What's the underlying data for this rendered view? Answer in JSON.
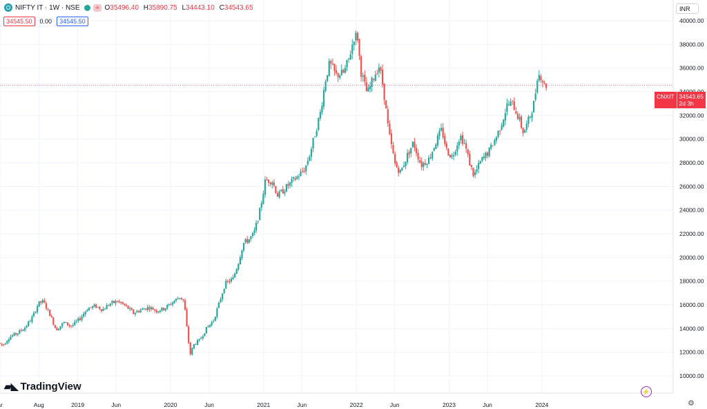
{
  "header": {
    "symbol_line": "NIFTY IT · 1W · NSE",
    "status_badge": "≈",
    "ohlc": {
      "open_label": "O",
      "open": "35496.40",
      "high_label": "H",
      "high": "35890.75",
      "low_label": "L",
      "low": "34443.10",
      "close_label": "C",
      "close": "34543.65"
    },
    "bid": "34545.50",
    "spread": "0.00",
    "ask": "34545.50",
    "currency": "INR"
  },
  "last_price_label": {
    "ticker": "CNXIT",
    "price": "34543.65",
    "countdown": "2d 3h"
  },
  "brand": "TradingView",
  "icons": {
    "symbol": "symbol-logo-icon",
    "market_open": "green-dot-icon",
    "settings": "gear-icon",
    "bolt": "lightning-icon"
  },
  "colors": {
    "up": "#26a69a",
    "down": "#ef5350",
    "grid": "#f0f3fa",
    "last_price": "#f23645"
  },
  "chart_data": {
    "type": "candlestick",
    "timeframe": "1W",
    "x_range": [
      "2018-03-01",
      "2024-01-20"
    ],
    "ylim": [
      9000,
      41000
    ],
    "y_ticks": [
      10000,
      12000,
      14000,
      16000,
      18000,
      20000,
      22000,
      24000,
      26000,
      28000,
      30000,
      32000,
      34000,
      36000,
      38000,
      40000
    ],
    "y_tick_labels": [
      "10000.00",
      "12000.00",
      "14000.00",
      "16000.00",
      "18000.00",
      "20000.00",
      "22000.00",
      "24000.00",
      "26000.00",
      "28000.00",
      "30000.00",
      "32000.00",
      "34000.00",
      "36000.00",
      "38000.00",
      "40000.00"
    ],
    "x_ticks": [
      {
        "label": "ar",
        "date": "2018-03-01"
      },
      {
        "label": "Aug",
        "date": "2018-08-01"
      },
      {
        "label": "2019",
        "date": "2019-01-01"
      },
      {
        "label": "Jun",
        "date": "2019-06-01"
      },
      {
        "label": "2020",
        "date": "2020-01-01"
      },
      {
        "label": "Jun",
        "date": "2020-06-01"
      },
      {
        "label": "2021",
        "date": "2021-01-01"
      },
      {
        "label": "Jun",
        "date": "2021-06-01"
      },
      {
        "label": "2022",
        "date": "2022-01-01"
      },
      {
        "label": "Jun",
        "date": "2022-06-01"
      },
      {
        "label": "2023",
        "date": "2023-01-01"
      },
      {
        "label": "Jun",
        "date": "2023-06-01"
      },
      {
        "label": "2024",
        "date": "2024-01-01"
      }
    ],
    "grid": true,
    "last_price": 34543.65,
    "anchors": [
      [
        "2018-03-01",
        12800
      ],
      [
        "2018-03-20",
        12600
      ],
      [
        "2018-04-15",
        13300
      ],
      [
        "2018-05-15",
        13600
      ],
      [
        "2018-06-15",
        14100
      ],
      [
        "2018-07-15",
        15000
      ],
      [
        "2018-08-05",
        16100
      ],
      [
        "2018-08-25",
        16300
      ],
      [
        "2018-09-20",
        15200
      ],
      [
        "2018-10-15",
        13900
      ],
      [
        "2018-11-15",
        14500
      ],
      [
        "2018-12-15",
        14200
      ],
      [
        "2019-01-15",
        14800
      ],
      [
        "2019-02-15",
        15700
      ],
      [
        "2019-03-20",
        15900
      ],
      [
        "2019-04-15",
        15600
      ],
      [
        "2019-05-15",
        16100
      ],
      [
        "2019-06-15",
        16300
      ],
      [
        "2019-07-15",
        15900
      ],
      [
        "2019-08-15",
        15300
      ],
      [
        "2019-09-15",
        15600
      ],
      [
        "2019-10-15",
        15800
      ],
      [
        "2019-11-15",
        15500
      ],
      [
        "2019-12-15",
        15700
      ],
      [
        "2020-01-15",
        16200
      ],
      [
        "2020-02-15",
        16700
      ],
      [
        "2020-03-01",
        16300
      ],
      [
        "2020-03-15",
        13500
      ],
      [
        "2020-03-25",
        11800
      ],
      [
        "2020-04-10",
        12700
      ],
      [
        "2020-05-01",
        13000
      ],
      [
        "2020-05-25",
        13900
      ],
      [
        "2020-06-25",
        14700
      ],
      [
        "2020-07-15",
        16000
      ],
      [
        "2020-08-10",
        17800
      ],
      [
        "2020-09-10",
        18200
      ],
      [
        "2020-10-01",
        19600
      ],
      [
        "2020-10-20",
        21200
      ],
      [
        "2020-11-10",
        21500
      ],
      [
        "2020-12-01",
        22000
      ],
      [
        "2020-12-25",
        24000
      ],
      [
        "2021-01-15",
        26500
      ],
      [
        "2021-02-10",
        26500
      ],
      [
        "2021-03-05",
        25200
      ],
      [
        "2021-04-01",
        25800
      ],
      [
        "2021-04-25",
        26300
      ],
      [
        "2021-05-20",
        26800
      ],
      [
        "2021-06-20",
        27500
      ],
      [
        "2021-07-10",
        28800
      ],
      [
        "2021-07-30",
        30500
      ],
      [
        "2021-08-20",
        32300
      ],
      [
        "2021-09-10",
        35200
      ],
      [
        "2021-09-25",
        36400
      ],
      [
        "2021-10-20",
        35400
      ],
      [
        "2021-11-20",
        35600
      ],
      [
        "2021-12-10",
        36800
      ],
      [
        "2021-12-30",
        38600
      ],
      [
        "2022-01-12",
        38800
      ],
      [
        "2022-01-25",
        35800
      ],
      [
        "2022-02-20",
        33800
      ],
      [
        "2022-03-20",
        35400
      ],
      [
        "2022-04-08",
        36200
      ],
      [
        "2022-04-25",
        34200
      ],
      [
        "2022-05-15",
        30600
      ],
      [
        "2022-06-10",
        27800
      ],
      [
        "2022-07-01",
        27200
      ],
      [
        "2022-07-25",
        28500
      ],
      [
        "2022-08-20",
        29700
      ],
      [
        "2022-09-20",
        27800
      ],
      [
        "2022-10-20",
        28300
      ],
      [
        "2022-11-20",
        29900
      ],
      [
        "2022-12-10",
        30800
      ],
      [
        "2022-12-30",
        29000
      ],
      [
        "2023-01-20",
        28500
      ],
      [
        "2023-02-20",
        30300
      ],
      [
        "2023-03-10",
        29600
      ],
      [
        "2023-03-28",
        28100
      ],
      [
        "2023-04-15",
        26900
      ],
      [
        "2023-05-15",
        28200
      ],
      [
        "2023-06-15",
        29000
      ],
      [
        "2023-07-15",
        30300
      ],
      [
        "2023-08-05",
        31500
      ],
      [
        "2023-08-25",
        32900
      ],
      [
        "2023-09-15",
        33000
      ],
      [
        "2023-10-10",
        31700
      ],
      [
        "2023-10-28",
        30500
      ],
      [
        "2023-11-20",
        31800
      ],
      [
        "2023-12-10",
        33200
      ],
      [
        "2023-12-22",
        35500
      ],
      [
        "2024-01-05",
        35300
      ],
      [
        "2024-01-18",
        34543
      ]
    ]
  }
}
